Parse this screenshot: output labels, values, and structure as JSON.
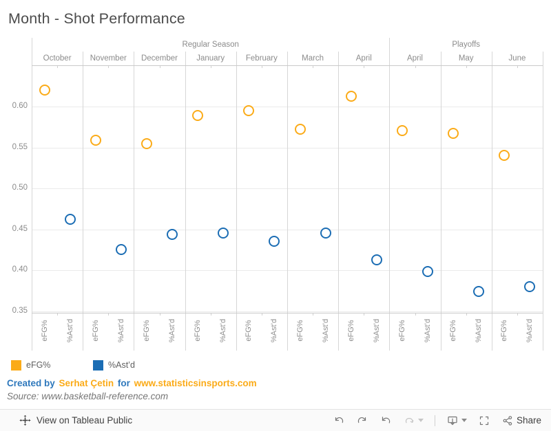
{
  "title": "Month - Shot Performance",
  "colors": {
    "efg_orange": "#fbab18",
    "astd_blue": "#1b6db4",
    "axis_text": "#8b8b8b",
    "title_text": "#4c4c4c",
    "footer_blue": "#2e78bc",
    "footer_orange": "#fbab18"
  },
  "chart_data": {
    "type": "scatter",
    "title": "Month - Shot Performance",
    "xlabel": "",
    "ylabel": "",
    "ylim": [
      0.35,
      0.65
    ],
    "grid": true,
    "legend_position": "bottom-left",
    "yticks": [
      0.6,
      0.55,
      0.5,
      0.45,
      0.4,
      0.35
    ],
    "ytick_labels": [
      "0.60",
      "0.55",
      "0.50",
      "0.45",
      "0.40",
      "0.35"
    ],
    "series_labels": [
      "eFG%",
      "%Ast’d"
    ],
    "groups": [
      {
        "label": "Regular Season",
        "months": [
          "October",
          "November",
          "December",
          "January",
          "February",
          "March",
          "April"
        ]
      },
      {
        "label": "Playoffs",
        "months": [
          "April",
          "May",
          "June"
        ]
      }
    ],
    "categories": [
      "October",
      "November",
      "December",
      "January",
      "February",
      "March",
      "April",
      "April",
      "May",
      "June"
    ],
    "series": [
      {
        "name": "eFG%",
        "color": "#fbab18",
        "values": [
          0.62,
          0.559,
          0.555,
          0.589,
          0.595,
          0.572,
          0.613,
          0.571,
          0.567,
          0.54
        ]
      },
      {
        "name": "%Ast’d",
        "color": "#1b6db4",
        "values": [
          0.462,
          0.425,
          0.444,
          0.445,
          0.435,
          0.445,
          0.413,
          0.398,
          0.374,
          0.38
        ]
      }
    ]
  },
  "legend": {
    "items": [
      {
        "label": "eFG%",
        "color": "#fbab18"
      },
      {
        "label": "%Ast’d",
        "color": "#1b6db4"
      }
    ]
  },
  "footer": {
    "created_by": "Created by",
    "author": "Serhat Çetin",
    "for_word": "for",
    "site": "www.statisticsinsports.com",
    "source": "Source: www.basketball-reference.com"
  },
  "toolbar": {
    "view_label": "View on Tableau Public",
    "share_label": "Share"
  }
}
